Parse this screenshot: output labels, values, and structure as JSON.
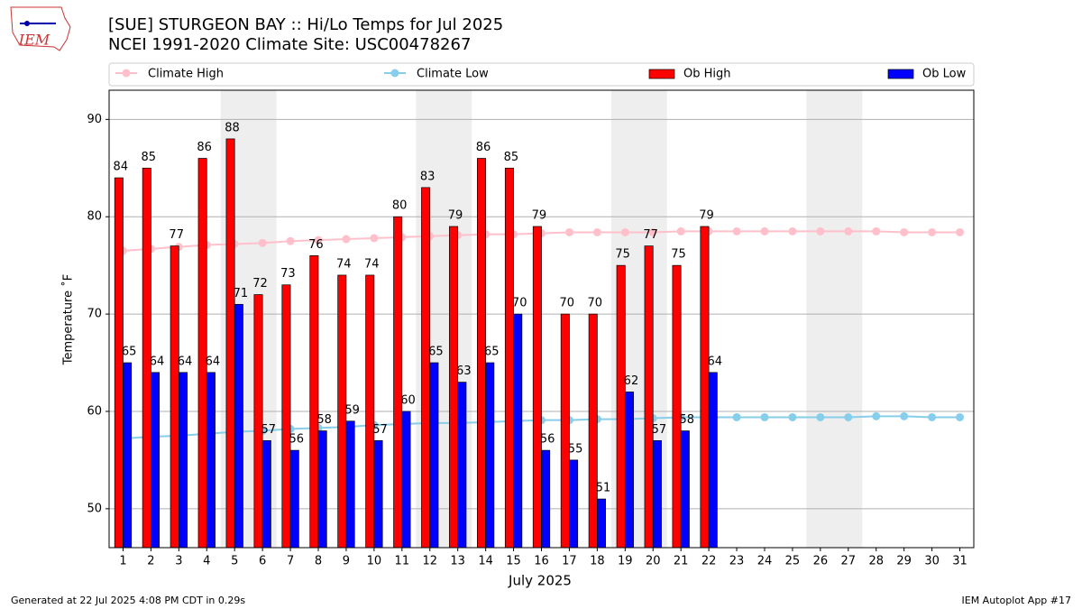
{
  "logo_text": "IEM",
  "footer_left": "Generated at 22 Jul 2025 4:08 PM CDT in 0.29s",
  "footer_right": "IEM Autoplot App #17",
  "chart_data": {
    "type": "bar",
    "title": "[SUE] STURGEON BAY :: Hi/Lo Temps for Jul 2025",
    "subtitle": "NCEI 1991-2020 Climate Site: USC00478267",
    "x_label": "July 2025",
    "y_label": "Temperature ˚F",
    "categories": [
      "1",
      "2",
      "3",
      "4",
      "5",
      "6",
      "7",
      "8",
      "9",
      "10",
      "11",
      "12",
      "13",
      "14",
      "15",
      "16",
      "17",
      "18",
      "19",
      "20",
      "21",
      "22",
      "23",
      "24",
      "25",
      "26",
      "27",
      "28",
      "29",
      "30",
      "31"
    ],
    "shaded": [
      [
        5,
        6
      ],
      [
        12,
        13
      ],
      [
        19,
        20
      ],
      [
        26,
        27
      ]
    ],
    "series": [
      {
        "name": "Climate High",
        "kind": "line",
        "color": "#ffc0cb",
        "values": [
          76.5,
          76.7,
          76.9,
          77.1,
          77.2,
          77.3,
          77.5,
          77.6,
          77.7,
          77.8,
          77.9,
          78.0,
          78.1,
          78.2,
          78.2,
          78.3,
          78.4,
          78.4,
          78.4,
          78.4,
          78.5,
          78.5,
          78.5,
          78.5,
          78.5,
          78.5,
          78.5,
          78.5,
          78.4,
          78.4,
          78.4
        ]
      },
      {
        "name": "Climate Low",
        "kind": "line",
        "color": "#87ceeb",
        "values": [
          57.2,
          57.4,
          57.5,
          57.7,
          57.9,
          58.0,
          58.2,
          58.3,
          58.4,
          58.6,
          58.7,
          58.8,
          58.8,
          58.9,
          59.0,
          59.1,
          59.1,
          59.2,
          59.2,
          59.3,
          59.4,
          59.4,
          59.4,
          59.4,
          59.4,
          59.4,
          59.4,
          59.5,
          59.5,
          59.4,
          59.4
        ]
      },
      {
        "name": "Ob High",
        "kind": "bar",
        "color": "#ff0000",
        "values": [
          84,
          85,
          77,
          86,
          88,
          72,
          73,
          76,
          74,
          74,
          80,
          83,
          79,
          86,
          85,
          79,
          70,
          70,
          75,
          77,
          75,
          79,
          null,
          null,
          null,
          null,
          null,
          null,
          null,
          null,
          null
        ]
      },
      {
        "name": "Ob Low",
        "kind": "bar",
        "color": "#0000ff",
        "values": [
          65,
          64,
          64,
          64,
          71,
          57,
          56,
          58,
          59,
          57,
          60,
          65,
          63,
          65,
          70,
          56,
          55,
          51,
          62,
          57,
          58,
          64,
          null,
          null,
          null,
          null,
          null,
          null,
          null,
          null,
          null
        ]
      }
    ],
    "ylim": [
      46,
      93
    ],
    "yticks": [
      50,
      60,
      70,
      80,
      90
    ],
    "grid": true
  }
}
